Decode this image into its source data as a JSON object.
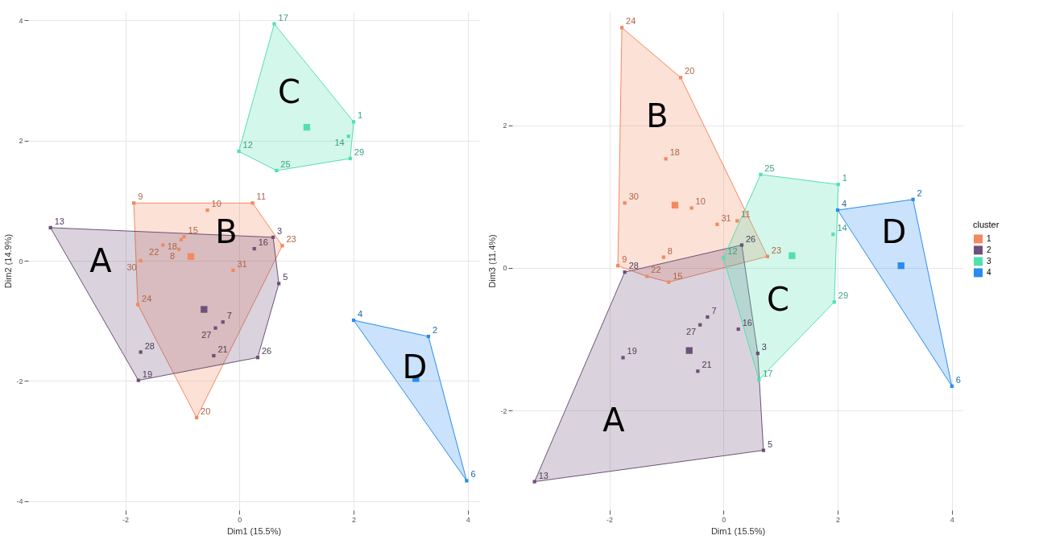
{
  "chart_data": [
    {
      "type": "scatter",
      "xlabel": "Dim1 (15.5%)",
      "ylabel": "Dim2 (14.9%)",
      "xlim": [
        -3.7,
        4.2
      ],
      "ylim": [
        -4.15,
        4.15
      ],
      "xticks": [
        -2,
        0,
        2,
        4
      ],
      "yticks": [
        -4,
        -2,
        0,
        2,
        4
      ],
      "grid": true,
      "legend": false,
      "marker": "square",
      "annotations": [
        "B",
        "A",
        "C",
        "D",
        {
          "text": "9",
          "x": -1.85,
          "y": 0.96
        },
        {
          "text": "10",
          "x": -0.56,
          "y": 0.84
        },
        {
          "text": "11",
          "x": 0.23,
          "y": 0.96
        },
        {
          "text": "15",
          "x": -0.97,
          "y": 0.4
        },
        {
          "text": "18",
          "x": -1.02,
          "y": 0.35
        },
        {
          "text": "22",
          "x": -1.34,
          "y": 0.26
        },
        {
          "text": "8",
          "x": -1.06,
          "y": 0.19
        },
        {
          "text": "30",
          "x": -1.73,
          "y": 0.0
        },
        {
          "text": "31",
          "x": -0.11,
          "y": -0.16
        },
        {
          "text": "23",
          "x": 0.75,
          "y": 0.25
        },
        {
          "text": "24",
          "x": -1.78,
          "y": -0.73
        },
        {
          "text": "20",
          "x": -0.75,
          "y": -2.61
        },
        {
          "text": "13",
          "x": -3.31,
          "y": 0.55
        },
        {
          "text": "3",
          "x": 0.59,
          "y": 0.39
        },
        {
          "text": "16",
          "x": 0.26,
          "y": 0.2
        },
        {
          "text": "5",
          "x": 0.69,
          "y": -0.38
        },
        {
          "text": "7",
          "x": -0.29,
          "y": -1.02
        },
        {
          "text": "27",
          "x": -0.42,
          "y": -1.12
        },
        {
          "text": "28",
          "x": -1.73,
          "y": -1.52
        },
        {
          "text": "21",
          "x": -0.45,
          "y": -1.58
        },
        {
          "text": "26",
          "x": 0.32,
          "y": -1.61
        },
        {
          "text": "19",
          "x": -1.77,
          "y": -1.99
        },
        {
          "text": "17",
          "x": 0.61,
          "y": 3.94
        },
        {
          "text": "1",
          "x": 2.0,
          "y": 2.31
        },
        {
          "text": "14",
          "x": 1.91,
          "y": 2.07
        },
        {
          "text": "12",
          "x": -0.01,
          "y": 1.82
        },
        {
          "text": "29",
          "x": 1.94,
          "y": 1.7
        },
        {
          "text": "25",
          "x": 0.65,
          "y": 1.5
        },
        {
          "text": "4",
          "x": 2.0,
          "y": -0.99
        },
        {
          "text": "2",
          "x": 3.31,
          "y": -1.26
        },
        {
          "text": "6",
          "x": 3.98,
          "y": -3.66
        }
      ],
      "series": [
        {
          "color": "#f4895f",
          "x": [
            -1.85,
            -0.56,
            0.23,
            -0.97,
            -1.02,
            -1.34,
            -1.06,
            -1.73,
            -0.11,
            0.75,
            -1.78,
            -0.75
          ],
          "values": [
            0.96,
            0.84,
            0.96,
            0.4,
            0.35,
            0.26,
            0.19,
            0.0,
            -0.16,
            0.25,
            -0.73,
            -2.61
          ]
        },
        {
          "color": "#6d5178",
          "x": [
            -3.31,
            0.59,
            0.26,
            0.69,
            -0.29,
            -0.42,
            -1.73,
            -0.45,
            0.32,
            -1.77
          ],
          "values": [
            0.55,
            0.39,
            0.2,
            -0.38,
            -1.02,
            -1.12,
            -1.52,
            -1.58,
            -1.61,
            -1.99
          ]
        },
        {
          "color": "#52e0b0",
          "x": [
            0.61,
            2.0,
            1.91,
            -0.01,
            1.94,
            0.65
          ],
          "values": [
            3.94,
            2.31,
            2.07,
            1.82,
            1.7,
            1.5
          ]
        },
        {
          "color": "#2a8cf0",
          "x": [
            2.0,
            3.31,
            3.98
          ],
          "values": [
            -0.99,
            -1.26,
            -3.66
          ]
        },
        {
          "x": [
            -0.85,
            -0.62,
            1.18,
            3.09
          ],
          "values": [
            0.07,
            -0.81,
            2.22,
            -1.96
          ],
          "colors": [
            "#f4895f",
            "#6d5178",
            "#52e0b0",
            "#2a8cf0"
          ]
        }
      ]
    },
    {
      "type": "scatter",
      "xlabel": "Dim1 (15.5%)",
      "ylabel": "Dim3 (11.4%)",
      "xlim": [
        -3.7,
        4.2
      ],
      "ylim": [
        -3.4,
        3.6
      ],
      "xticks": [
        -2,
        0,
        2,
        4
      ],
      "yticks": [
        -2,
        0,
        2
      ],
      "grid": true,
      "legend": "right",
      "legend_title": "cluster",
      "marker": "square",
      "annotations": [
        "B",
        "A",
        "C",
        "D",
        {
          "text": "24",
          "x": -1.78,
          "y": 3.37
        },
        {
          "text": "20",
          "x": -0.75,
          "y": 2.67
        },
        {
          "text": "18",
          "x": -1.01,
          "y": 1.53
        },
        {
          "text": "30",
          "x": -1.73,
          "y": 0.91
        },
        {
          "text": "10",
          "x": -0.56,
          "y": 0.84
        },
        {
          "text": "31",
          "x": -0.11,
          "y": 0.61
        },
        {
          "text": "11",
          "x": 0.24,
          "y": 0.66
        },
        {
          "text": "23",
          "x": 0.77,
          "y": 0.16
        },
        {
          "text": "8",
          "x": -1.05,
          "y": 0.15
        },
        {
          "text": "9",
          "x": -1.85,
          "y": 0.03
        },
        {
          "text": "22",
          "x": -1.34,
          "y": -0.12
        },
        {
          "text": "15",
          "x": -0.96,
          "y": -0.2
        },
        {
          "text": "26",
          "x": 0.32,
          "y": 0.32
        },
        {
          "text": "28",
          "x": -1.73,
          "y": -0.06
        },
        {
          "text": "7",
          "x": -0.28,
          "y": -0.69
        },
        {
          "text": "27",
          "x": -0.41,
          "y": -0.8
        },
        {
          "text": "19",
          "x": -1.76,
          "y": -1.26
        },
        {
          "text": "21",
          "x": -0.45,
          "y": -1.45
        },
        {
          "text": "5",
          "x": 0.7,
          "y": -2.56
        },
        {
          "text": "13",
          "x": -3.31,
          "y": -3.0
        },
        {
          "text": "16",
          "x": 0.26,
          "y": -0.86
        },
        {
          "text": "3",
          "x": 0.6,
          "y": -1.2
        },
        {
          "text": "25",
          "x": 0.65,
          "y": 1.31
        },
        {
          "text": "1",
          "x": 2.01,
          "y": 1.17
        },
        {
          "text": "14",
          "x": 1.92,
          "y": 0.47
        },
        {
          "text": "29",
          "x": 1.94,
          "y": -0.48
        },
        {
          "text": "17",
          "x": 0.62,
          "y": -1.57
        },
        {
          "text": "12",
          "x": 0.0,
          "y": 0.14
        },
        {
          "text": "4",
          "x": 2.0,
          "y": 0.81
        },
        {
          "text": "2",
          "x": 3.32,
          "y": 0.96
        },
        {
          "text": "6",
          "x": 4.0,
          "y": -1.66
        }
      ],
      "series": [
        {
          "name": "1",
          "color": "#f4895f",
          "x": [
            -1.78,
            -0.75,
            -1.01,
            -1.73,
            -0.56,
            -0.11,
            0.24,
            0.77,
            -1.05,
            -1.85,
            -1.34,
            -0.96
          ],
          "values": [
            3.37,
            2.67,
            1.53,
            0.91,
            0.84,
            0.61,
            0.66,
            0.16,
            0.15,
            0.03,
            -0.12,
            -0.2
          ]
        },
        {
          "name": "2",
          "color": "#6d5178",
          "x": [
            0.32,
            -1.73,
            -0.28,
            -0.41,
            -1.76,
            -0.45,
            0.7,
            -3.31,
            0.26,
            0.6
          ],
          "values": [
            0.32,
            -0.06,
            -0.69,
            -0.8,
            -1.26,
            -1.45,
            -2.56,
            -3.0,
            -0.86,
            -1.2
          ]
        },
        {
          "name": "3",
          "color": "#52e0b0",
          "x": [
            0.65,
            2.01,
            1.92,
            1.94,
            0.62,
            0.0
          ],
          "values": [
            1.31,
            1.17,
            0.47,
            -0.48,
            -1.57,
            0.14
          ]
        },
        {
          "name": "4",
          "color": "#2a8cf0",
          "x": [
            2.0,
            3.32,
            4.0
          ],
          "values": [
            0.81,
            0.96,
            -1.66
          ]
        },
        {
          "x": [
            -0.85,
            -0.6,
            1.2,
            3.11
          ],
          "values": [
            0.88,
            -1.16,
            0.17,
            0.03
          ],
          "colors": [
            "#f4895f",
            "#6d5178",
            "#52e0b0",
            "#2a8cf0"
          ]
        }
      ]
    }
  ]
}
